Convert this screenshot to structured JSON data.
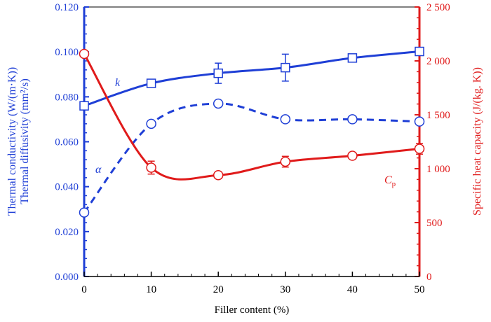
{
  "chart_data": {
    "type": "line",
    "xlabel": "Filler content (%)",
    "x": [
      0,
      10,
      20,
      30,
      40,
      50
    ],
    "xlim": [
      0,
      50
    ],
    "xticks": [
      "0",
      "10",
      "20",
      "30",
      "40",
      "50"
    ],
    "ylabel_left_line1": "Thermal conductivity (W/(m·K))",
    "ylabel_left_line2": "Thermal diffusivity (mm²/s)",
    "ylim_left": [
      0.0,
      0.12
    ],
    "yticks_left": [
      "0.000",
      "0.020",
      "0.040",
      "0.060",
      "0.080",
      "0.100",
      "0.120"
    ],
    "ylabel_right": "Specific heat capacity (J/(kg. K))",
    "ylim_right": [
      0,
      2500
    ],
    "yticks_right": [
      "0",
      "500",
      "1 000",
      "1 500",
      "2 000",
      "2 500"
    ],
    "grid": false,
    "series": [
      {
        "name": "k",
        "axis": "left",
        "color": "#1f3fd6",
        "line_style": "solid",
        "marker": "square",
        "values": [
          0.076,
          0.086,
          0.0905,
          0.093,
          0.0973,
          0.1002
        ],
        "errors": [
          0,
          0.0015,
          0.0045,
          0.006,
          0,
          0
        ]
      },
      {
        "name": "α",
        "axis": "left",
        "color": "#1f3fd6",
        "line_style": "dashed",
        "marker": "circle",
        "values": [
          0.0285,
          0.068,
          0.077,
          0.07,
          0.07,
          0.069
        ],
        "errors": [
          0,
          0,
          0,
          0,
          0,
          0
        ]
      },
      {
        "name": "Cp",
        "name_main": "C",
        "name_sub": "p",
        "axis": "right",
        "color": "#e01b1b",
        "line_style": "solid",
        "marker": "circle",
        "values": [
          2065,
          1010,
          940,
          1065,
          1120,
          1185
        ],
        "errors": [
          0,
          60,
          30,
          50,
          0,
          50
        ]
      }
    ]
  }
}
